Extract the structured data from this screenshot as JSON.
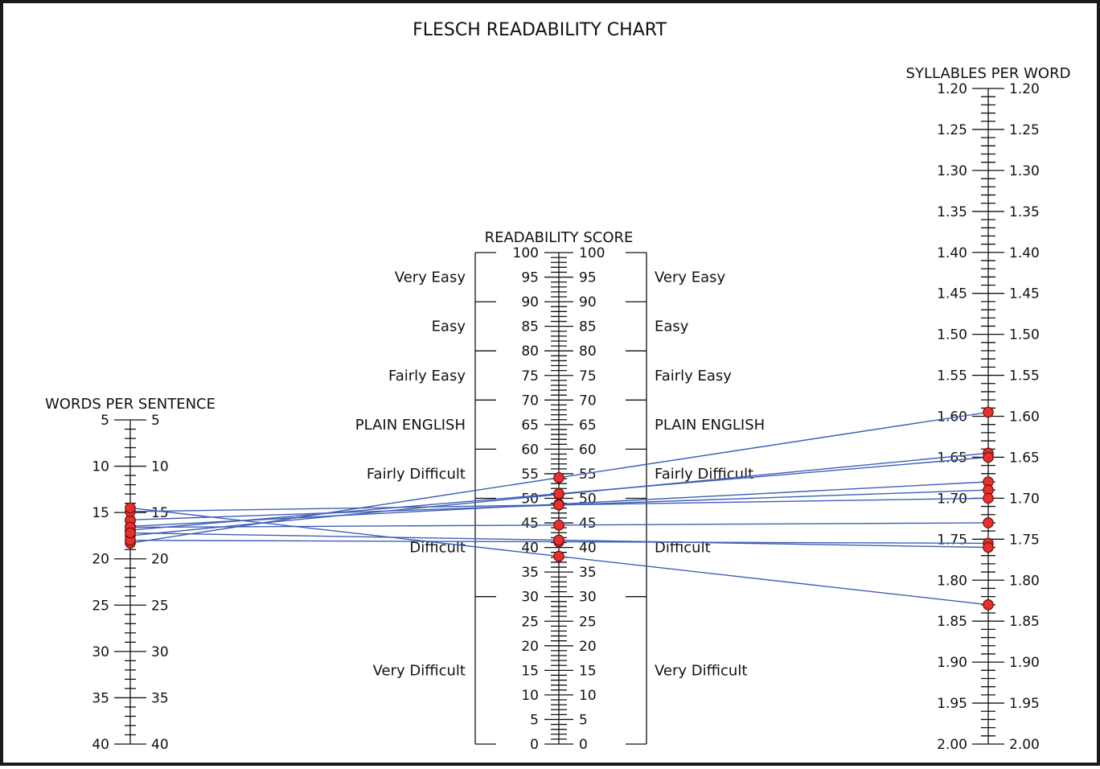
{
  "chart_data": {
    "type": "nomogram",
    "title": "FLESCH READABILITY CHART",
    "axes": {
      "words_per_sentence": {
        "label": "WORDS PER SENTENCE",
        "range": [
          5,
          40
        ],
        "direction": "increasing-downward",
        "major_ticks": [
          5,
          10,
          15,
          20,
          25,
          30,
          35,
          40
        ],
        "labels": [
          "5",
          "10",
          "15",
          "20",
          "25",
          "30",
          "35",
          "40"
        ]
      },
      "readability_score": {
        "label": "READABILITY SCORE",
        "range": [
          0,
          100
        ],
        "direction": "increasing-upward",
        "major_ticks": [
          100,
          95,
          90,
          85,
          80,
          75,
          70,
          65,
          60,
          55,
          50,
          45,
          40,
          35,
          30,
          25,
          20,
          15,
          10,
          5,
          0
        ],
        "labels": [
          "100",
          "95",
          "90",
          "85",
          "80",
          "75",
          "70",
          "65",
          "60",
          "55",
          "50",
          "45",
          "40",
          "35",
          "30",
          "25",
          "20",
          "15",
          "10",
          "5",
          "0"
        ]
      },
      "syllables_per_word": {
        "label": "SYLLABLES PER WORD",
        "range": [
          1.2,
          2.0
        ],
        "direction": "increasing-downward",
        "major_ticks": [
          1.2,
          1.25,
          1.3,
          1.35,
          1.4,
          1.45,
          1.5,
          1.55,
          1.6,
          1.65,
          1.7,
          1.75,
          1.8,
          1.85,
          1.9,
          1.95,
          2.0
        ],
        "labels": [
          "1.20",
          "1.25",
          "1.30",
          "1.35",
          "1.40",
          "1.45",
          "1.50",
          "1.55",
          "1.60",
          "1.65",
          "1.70",
          "1.75",
          "1.80",
          "1.85",
          "1.90",
          "1.95",
          "2.00"
        ]
      }
    },
    "bands": [
      {
        "label": "Very Easy",
        "min": 90,
        "max": 100
      },
      {
        "label": "Easy",
        "min": 80,
        "max": 90
      },
      {
        "label": "Fairly Easy",
        "min": 70,
        "max": 80
      },
      {
        "label": "PLAIN ENGLISH",
        "min": 60,
        "max": 70
      },
      {
        "label": "Fairly Difficult",
        "min": 50,
        "max": 60
      },
      {
        "label": "Difficult",
        "min": 30,
        "max": 50
      },
      {
        "label": "Very Difficult",
        "min": 0,
        "max": 30
      }
    ],
    "samples": [
      {
        "words_per_sentence": 18.3,
        "syllables_per_word": 1.595
      },
      {
        "words_per_sentence": 17.5,
        "syllables_per_word": 1.645
      },
      {
        "words_per_sentence": 16.9,
        "syllables_per_word": 1.65
      },
      {
        "words_per_sentence": 16.5,
        "syllables_per_word": 1.68
      },
      {
        "words_per_sentence": 15.8,
        "syllables_per_word": 1.69
      },
      {
        "words_per_sentence": 14.9,
        "syllables_per_word": 1.7
      },
      {
        "words_per_sentence": 16.6,
        "syllables_per_word": 1.73
      },
      {
        "words_per_sentence": 18.0,
        "syllables_per_word": 1.755
      },
      {
        "words_per_sentence": 17.2,
        "syllables_per_word": 1.76
      },
      {
        "words_per_sentence": 14.5,
        "syllables_per_word": 1.83
      }
    ],
    "line_color": "#3e5fb5",
    "marker_color": "#e8302a",
    "marker_edge_color": "#6a1010"
  }
}
